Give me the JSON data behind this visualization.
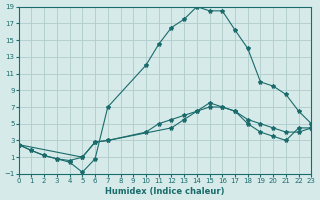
{
  "xlabel": "Humidex (Indice chaleur)",
  "ylabel": "",
  "bg_color": "#d6eaea",
  "grid_color": "#b0cccc",
  "line_color": "#1a6b6b",
  "xlim": [
    0,
    23
  ],
  "ylim": [
    -1,
    19
  ],
  "xticks": [
    0,
    1,
    2,
    3,
    4,
    5,
    6,
    7,
    8,
    9,
    10,
    11,
    12,
    13,
    14,
    15,
    16,
    17,
    18,
    19,
    20,
    21,
    22,
    23
  ],
  "yticks": [
    -1,
    1,
    3,
    5,
    7,
    9,
    11,
    13,
    15,
    17,
    19
  ],
  "line1_x": [
    0,
    1,
    2,
    3,
    4,
    5,
    6,
    7,
    12,
    13,
    14,
    15,
    16,
    17,
    18,
    19,
    20,
    21,
    22,
    23
  ],
  "line1_y": [
    2.5,
    1.8,
    1.2,
    0.8,
    0.6,
    1.0,
    2.8,
    3.0,
    4.5,
    5.5,
    6.5,
    7.5,
    7.0,
    6.5,
    5.0,
    4.0,
    3.5,
    3.0,
    4.5,
    4.5
  ],
  "line2_x": [
    0,
    1,
    2,
    3,
    4,
    5,
    6,
    7,
    10,
    11,
    12,
    13,
    14,
    15,
    16,
    17,
    18,
    19,
    20,
    21,
    22,
    23
  ],
  "line2_y": [
    2.5,
    1.8,
    1.2,
    0.8,
    0.4,
    -0.8,
    0.8,
    7.0,
    12.0,
    14.5,
    16.5,
    17.5,
    19.0,
    18.5,
    18.5,
    16.2,
    14.0,
    10.0,
    9.5,
    8.5,
    6.5,
    5.0
  ],
  "line3_x": [
    0,
    5,
    6,
    7,
    10,
    11,
    12,
    13,
    14,
    15,
    16,
    17,
    18,
    19,
    20,
    21,
    22,
    23
  ],
  "line3_y": [
    2.5,
    1.0,
    2.8,
    3.0,
    4.0,
    5.0,
    5.5,
    6.0,
    6.5,
    7.0,
    7.0,
    6.5,
    5.5,
    5.0,
    4.5,
    4.0,
    4.0,
    4.5
  ]
}
